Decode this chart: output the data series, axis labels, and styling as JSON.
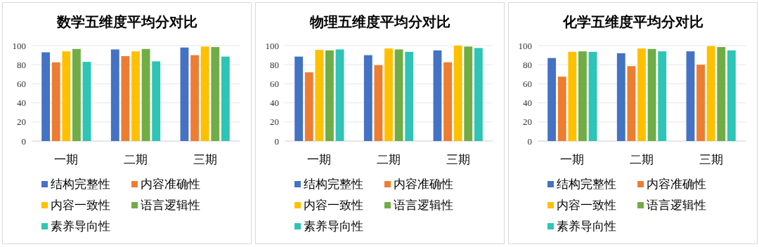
{
  "chart_data": [
    {
      "type": "bar",
      "title": "数学五维度平均分对比",
      "categories": [
        "一期",
        "二期",
        "三期"
      ],
      "ylim": [
        0,
        100
      ],
      "yticks": [
        0,
        20,
        40,
        60,
        80,
        100
      ],
      "grid": "y",
      "legend": "bottom",
      "series": [
        {
          "name": "结构完整性",
          "color": "#4472c4",
          "values": [
            93,
            96,
            98
          ]
        },
        {
          "name": "内容准确性",
          "color": "#ed7d31",
          "values": [
            82.5,
            89,
            90
          ]
        },
        {
          "name": "内容一致性",
          "color": "#ffc000",
          "values": [
            94,
            94,
            99
          ]
        },
        {
          "name": "语言逻辑性",
          "color": "#70ad47",
          "values": [
            96.5,
            96.5,
            98.5
          ]
        },
        {
          "name": "素养导向性",
          "color": "#2ec4b6",
          "values": [
            83,
            83.5,
            88.5
          ]
        }
      ]
    },
    {
      "type": "bar",
      "title": "物理五维度平均分对比",
      "categories": [
        "一期",
        "二期",
        "三期"
      ],
      "ylim": [
        0,
        100
      ],
      "yticks": [
        0,
        20,
        40,
        60,
        80,
        100
      ],
      "grid": "y",
      "legend": "bottom",
      "series": [
        {
          "name": "结构完整性",
          "color": "#4472c4",
          "values": [
            88.5,
            90,
            95
          ]
        },
        {
          "name": "内容准确性",
          "color": "#ed7d31",
          "values": [
            72,
            79.5,
            82.5
          ]
        },
        {
          "name": "内容一致性",
          "color": "#ffc000",
          "values": [
            95.5,
            97,
            100
          ]
        },
        {
          "name": "语言逻辑性",
          "color": "#70ad47",
          "values": [
            95,
            96,
            99
          ]
        },
        {
          "name": "素养导向性",
          "color": "#2ec4b6",
          "values": [
            96,
            93.5,
            97.5
          ]
        }
      ]
    },
    {
      "type": "bar",
      "title": "化学五维度平均分对比",
      "categories": [
        "一期",
        "二期",
        "三期"
      ],
      "ylim": [
        0,
        100
      ],
      "yticks": [
        0,
        20,
        40,
        60,
        80,
        100
      ],
      "grid": "y",
      "legend": "bottom",
      "series": [
        {
          "name": "结构完整性",
          "color": "#4472c4",
          "values": [
            87,
            92,
            94
          ]
        },
        {
          "name": "内容准确性",
          "color": "#ed7d31",
          "values": [
            67.5,
            78.5,
            80
          ]
        },
        {
          "name": "内容一致性",
          "color": "#ffc000",
          "values": [
            93.5,
            97,
            99.5
          ]
        },
        {
          "name": "语言逻辑性",
          "color": "#70ad47",
          "values": [
            94,
            96.5,
            98.5
          ]
        },
        {
          "name": "素养导向性",
          "color": "#2ec4b6",
          "values": [
            93.5,
            94,
            95
          ]
        }
      ]
    }
  ]
}
